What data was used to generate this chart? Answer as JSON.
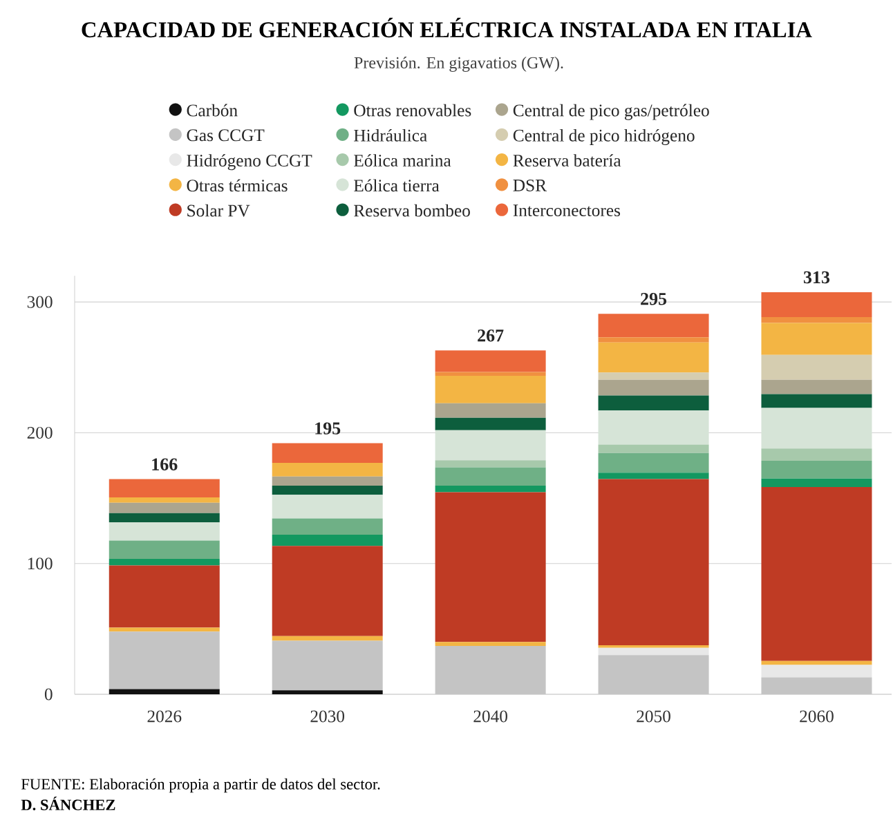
{
  "chart_data": {
    "type": "bar",
    "stacked": true,
    "title": "CAPACIDAD DE GENERACIÓN ELÉCTRICA INSTALADA EN ITALIA",
    "subtitle": "Previsión. En gigavatios (GW).",
    "categories": [
      "2026",
      "2030",
      "2040",
      "2050",
      "2060"
    ],
    "series": [
      {
        "name": "Carbón",
        "color": "#111111",
        "values": [
          4,
          3,
          0,
          0,
          0
        ]
      },
      {
        "name": "Gas CCGT",
        "color": "#c4c4c4",
        "values": [
          44,
          38,
          37,
          30,
          13
        ]
      },
      {
        "name": "Hidrógeno CCGT",
        "color": "#e8e8e8",
        "values": [
          0,
          0,
          0,
          5.5,
          9.5
        ]
      },
      {
        "name": "Otras térmicas",
        "color": "#f3b544",
        "values": [
          3,
          3.5,
          3,
          2,
          3
        ]
      },
      {
        "name": "Solar PV",
        "color": "#bf3b24",
        "values": [
          47.5,
          69,
          114.5,
          127,
          133
        ]
      },
      {
        "name": "Otras renovables",
        "color": "#139860",
        "values": [
          5,
          8.5,
          5,
          5,
          6.5
        ]
      },
      {
        "name": "Hidráulica",
        "color": "#6fb086",
        "values": [
          14,
          12.5,
          14,
          15,
          13.5
        ]
      },
      {
        "name": "Eólica marina",
        "color": "#a7c9ab",
        "values": [
          0,
          0,
          5.5,
          6.5,
          9.5
        ]
      },
      {
        "name": "Eólica tierra",
        "color": "#d6e4d7",
        "values": [
          14,
          18,
          23,
          26,
          31
        ]
      },
      {
        "name": "Reserva bombeo",
        "color": "#0d5e3d",
        "values": [
          7,
          7,
          9.5,
          11.5,
          10.5
        ]
      },
      {
        "name": "Central de pico gas/petróleo",
        "color": "#aba58e",
        "values": [
          8,
          7,
          11,
          12,
          11
        ]
      },
      {
        "name": "Central de pico hidrógeno",
        "color": "#d5cdb0",
        "values": [
          0,
          0,
          0,
          5.5,
          19
        ]
      },
      {
        "name": "Reserva batería",
        "color": "#f3b544",
        "values": [
          4,
          10.5,
          21,
          23,
          24.5
        ]
      },
      {
        "name": "DSR",
        "color": "#f09040",
        "values": [
          0,
          0,
          3,
          4,
          4.5
        ]
      },
      {
        "name": "Interconectores",
        "color": "#eb673b",
        "values": [
          14,
          15,
          16.5,
          18,
          19
        ]
      }
    ],
    "totals": [
      "166",
      "195",
      "267",
      "295",
      "313"
    ],
    "ylim": [
      0,
      320
    ],
    "yticks": [
      0,
      100,
      200,
      300
    ],
    "grid": "y",
    "legend": "top",
    "annotations": [
      "FUENTE: Elaboración propia a partir de datos del sector.",
      "D. SÁNCHEZ"
    ]
  }
}
